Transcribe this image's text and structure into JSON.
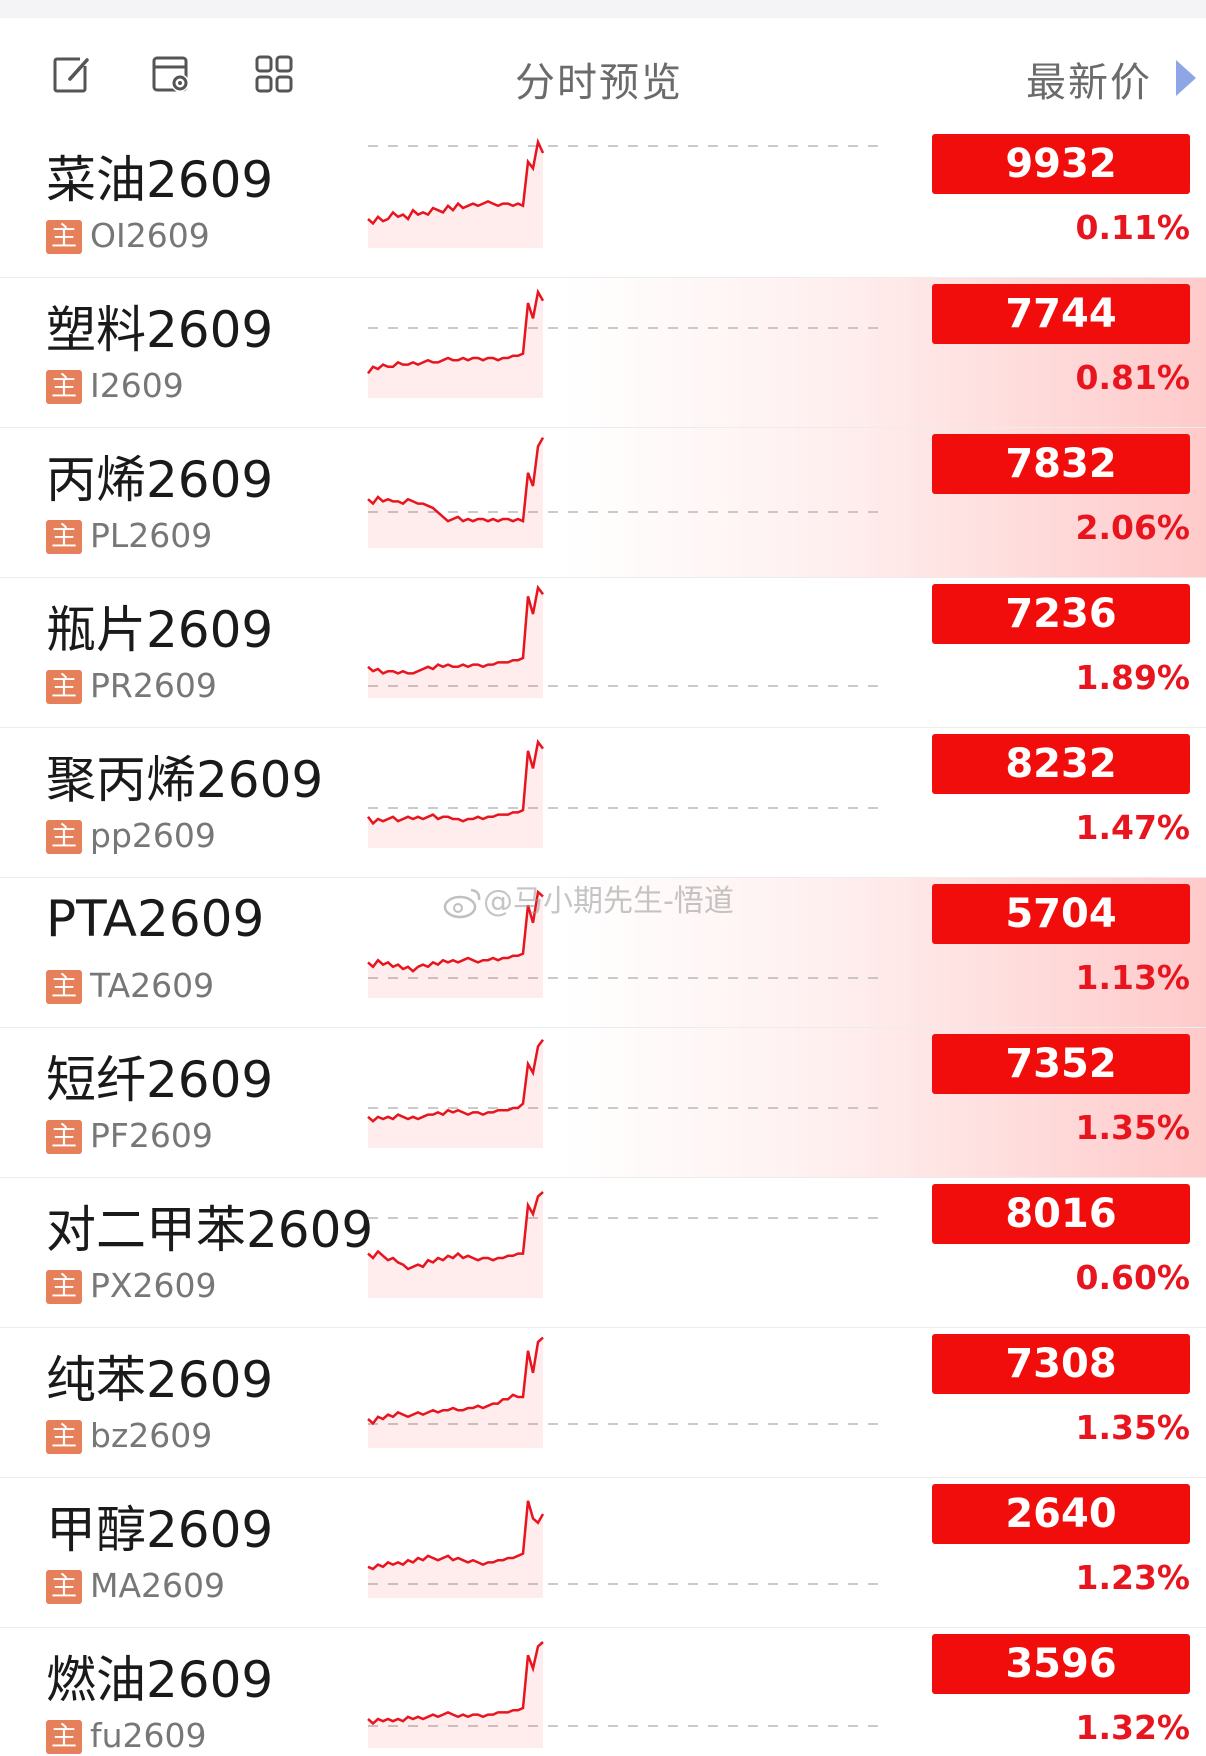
{
  "header": {
    "title": "分时预览",
    "sort_label": "最新价",
    "icons": [
      "edit-icon",
      "settings-window-icon",
      "grid-icon",
      "triangle-right-icon"
    ]
  },
  "colors": {
    "up": "#f20d0d",
    "tag": "#e6805a",
    "line": "#e8141e"
  },
  "watermark": "@马小期先生-悟道",
  "rows": [
    {
      "name": "菜油2609",
      "tag": "主",
      "code": "OI2609",
      "price": "9932",
      "change": "0.11%",
      "highlight": false,
      "series": [
        5,
        3,
        6,
        4,
        5,
        8,
        6,
        7,
        5,
        9,
        7,
        8,
        7,
        10,
        9,
        8,
        11,
        9,
        12,
        10,
        11,
        12,
        11,
        12,
        13,
        12,
        11,
        12,
        12,
        11,
        12,
        11,
        31,
        28,
        40,
        35
      ]
    },
    {
      "name": "塑料2609",
      "tag": "主",
      "code": "I2609",
      "price": "7744",
      "change": "0.81%",
      "highlight": true,
      "series": [
        3,
        6,
        5,
        7,
        6,
        6,
        8,
        7,
        7,
        8,
        7,
        8,
        9,
        8,
        8,
        9,
        10,
        9,
        9,
        10,
        9,
        10,
        10,
        9,
        10,
        10,
        9,
        10,
        10,
        11,
        11,
        12,
        35,
        28,
        40,
        36
      ]
    },
    {
      "name": "丙烯2609",
      "tag": "主",
      "code": "PL2609",
      "price": "7832",
      "change": "2.06%",
      "highlight": true,
      "series": [
        14,
        12,
        15,
        13,
        14,
        13,
        13,
        12,
        14,
        13,
        12,
        12,
        11,
        10,
        8,
        6,
        4,
        5,
        6,
        4,
        5,
        4,
        5,
        5,
        4,
        5,
        4,
        5,
        5,
        4,
        5,
        4,
        26,
        20,
        38,
        42
      ]
    },
    {
      "name": "瓶片2609",
      "tag": "主",
      "code": "PR2609",
      "price": "7236",
      "change": "1.89%",
      "highlight": false,
      "series": [
        6,
        4,
        5,
        3,
        4,
        4,
        3,
        4,
        3,
        3,
        4,
        5,
        6,
        5,
        7,
        6,
        7,
        6,
        6,
        7,
        6,
        7,
        7,
        6,
        7,
        7,
        8,
        8,
        8,
        9,
        9,
        10,
        38,
        30,
        42,
        39
      ]
    },
    {
      "name": "聚丙烯2609",
      "tag": "主",
      "code": "pp2609",
      "price": "8232",
      "change": "1.47%",
      "highlight": false,
      "series": [
        6,
        3,
        5,
        4,
        5,
        6,
        4,
        5,
        6,
        5,
        6,
        5,
        6,
        7,
        5,
        6,
        6,
        5,
        5,
        4,
        5,
        5,
        6,
        5,
        6,
        6,
        7,
        7,
        7,
        8,
        8,
        9,
        36,
        28,
        40,
        37
      ]
    },
    {
      "name": "PTA2609",
      "tag": "主",
      "code": "TA2609",
      "price": "5704",
      "change": "1.13%",
      "highlight": true,
      "series": [
        8,
        6,
        9,
        7,
        8,
        6,
        7,
        5,
        6,
        4,
        6,
        7,
        6,
        8,
        7,
        9,
        8,
        9,
        8,
        9,
        10,
        9,
        8,
        9,
        9,
        10,
        9,
        10,
        10,
        11,
        11,
        12,
        34,
        26,
        40,
        38
      ]
    },
    {
      "name": "短纤2609",
      "tag": "主",
      "code": "PF2609",
      "price": "7352",
      "change": "1.35%",
      "highlight": true,
      "series": [
        6,
        4,
        6,
        5,
        6,
        5,
        7,
        6,
        5,
        6,
        5,
        6,
        7,
        7,
        8,
        7,
        9,
        8,
        9,
        8,
        7,
        8,
        8,
        7,
        8,
        8,
        9,
        9,
        9,
        10,
        10,
        12,
        30,
        26,
        38,
        41
      ]
    },
    {
      "name": "对二甲苯2609",
      "tag": "主",
      "code": "PX2609",
      "price": "8016",
      "change": "0.60%",
      "highlight": false,
      "series": [
        12,
        10,
        13,
        11,
        9,
        10,
        8,
        7,
        5,
        6,
        7,
        6,
        9,
        8,
        10,
        9,
        11,
        10,
        12,
        10,
        11,
        10,
        9,
        10,
        10,
        9,
        10,
        10,
        11,
        11,
        12,
        12,
        34,
        30,
        38,
        40
      ]
    },
    {
      "name": "纯苯2609",
      "tag": "主",
      "code": "bz2609",
      "price": "7308",
      "change": "1.35%",
      "highlight": false,
      "series": [
        5,
        3,
        6,
        5,
        7,
        6,
        8,
        7,
        6,
        7,
        8,
        7,
        8,
        9,
        8,
        9,
        9,
        10,
        9,
        9,
        10,
        10,
        11,
        10,
        11,
        12,
        12,
        14,
        14,
        16,
        15,
        15,
        36,
        26,
        40,
        42
      ]
    },
    {
      "name": "甲醇2609",
      "tag": "主",
      "code": "MA2609",
      "price": "2640",
      "change": "1.23%",
      "highlight": false,
      "series": [
        6,
        5,
        7,
        6,
        8,
        7,
        8,
        7,
        9,
        8,
        10,
        9,
        11,
        10,
        9,
        10,
        11,
        9,
        10,
        9,
        8,
        9,
        8,
        7,
        8,
        8,
        9,
        9,
        10,
        10,
        11,
        12,
        36,
        28,
        26,
        30
      ]
    },
    {
      "name": "燃油2609",
      "tag": "主",
      "code": "fu2609",
      "price": "3596",
      "change": "1.32%",
      "highlight": false,
      "series": [
        5,
        3,
        5,
        4,
        5,
        4,
        5,
        4,
        6,
        5,
        6,
        5,
        6,
        7,
        6,
        7,
        8,
        7,
        6,
        7,
        6,
        7,
        7,
        6,
        7,
        7,
        8,
        8,
        8,
        9,
        9,
        10,
        34,
        28,
        38,
        40
      ]
    }
  ]
}
